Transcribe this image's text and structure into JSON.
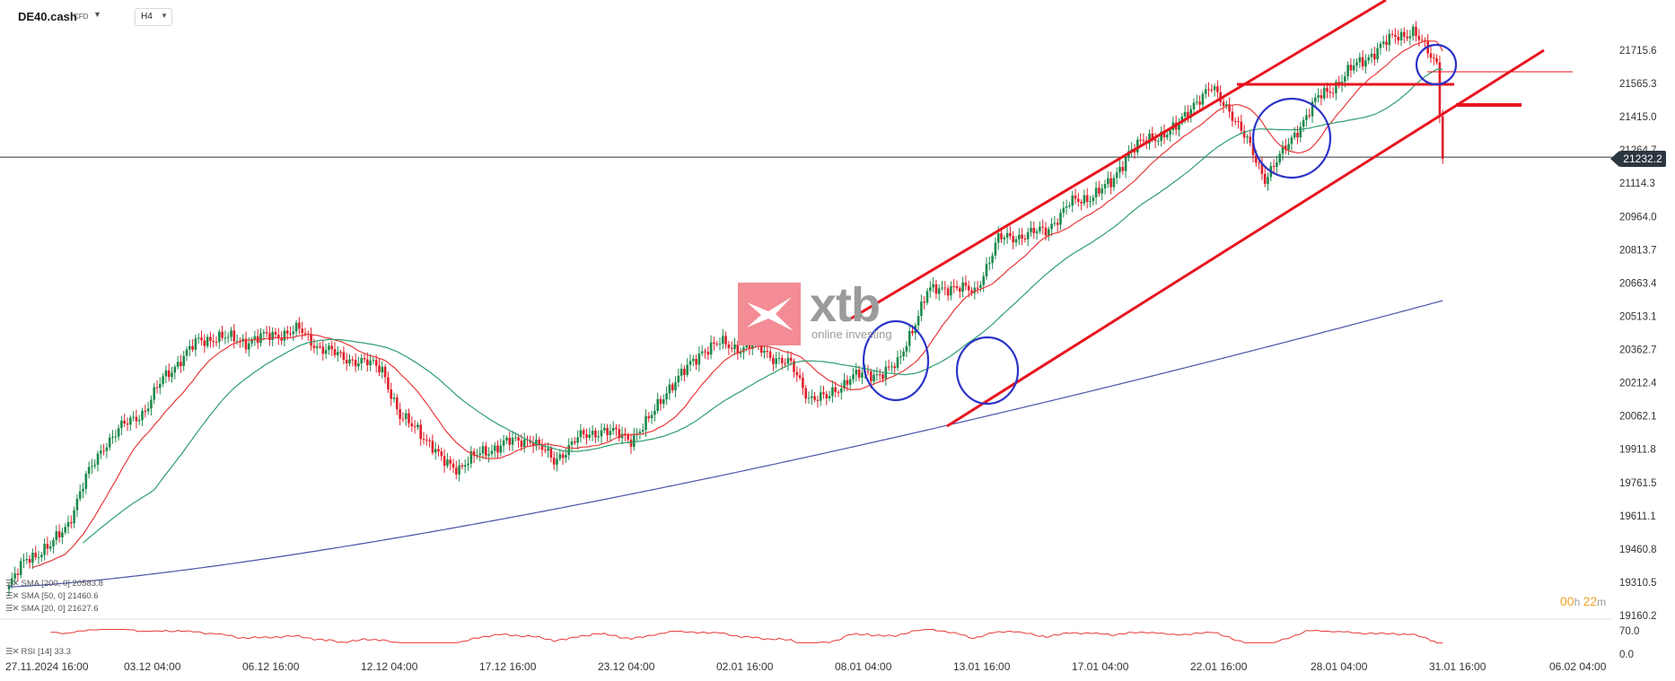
{
  "header": {
    "symbol": "DE40.cash",
    "symbol_type": "CFD",
    "timeframe": "H4"
  },
  "indicators": {
    "sma200": "SMA [200, 0] 20583.8",
    "sma50": "SMA [50, 0] 21460.6",
    "sma20": "SMA [20, 0] 21627.6",
    "rsi": "RSI [14] 33.3"
  },
  "countdown": {
    "hours": "00",
    "h_label": "h ",
    "minutes": "22",
    "m_label": "m"
  },
  "current_price": "21232.2",
  "watermark": {
    "brand": "xtb",
    "tagline": "online investing"
  },
  "colors": {
    "bull": "#1e8a4c",
    "bear": "#e0202a",
    "sma20": "#e83838",
    "sma50": "#2e9e6c",
    "sma200": "#4a52a8",
    "trend": "#e8141e",
    "circle": "#2c34c8",
    "rsi": "#e83838"
  },
  "chart_data": {
    "type": "candlestick",
    "y_axis": {
      "ticks": [
        "21715.6",
        "21565.3",
        "21415.0",
        "21264.7",
        "21114.3",
        "20964.0",
        "20813.7",
        "20663.4",
        "20513.1",
        "20362.7",
        "20212.4",
        "20062.1",
        "19911.8",
        "19761.5",
        "19611.1",
        "19460.8",
        "19310.5",
        "19160.2"
      ]
    },
    "x_axis": {
      "ticks": [
        "27.11.2024  16:00",
        "03.12  04:00",
        "06.12  16:00",
        "12.12  04:00",
        "17.12  16:00",
        "23.12  04:00",
        "02.01  16:00",
        "08.01  04:00",
        "13.01  16:00",
        "17.01  04:00",
        "22.01  16:00",
        "28.01  04:00",
        "31.01  16:00",
        "06.02  04:00"
      ]
    },
    "ohlc": [],
    "rsi_axis": {
      "ticks": [
        "70.0",
        "0.0"
      ]
    },
    "rsi_last": 33.3,
    "sma": {
      "sma20_last": 21627.6,
      "sma50_last": 21460.6,
      "sma200_last": 20583.8
    }
  }
}
